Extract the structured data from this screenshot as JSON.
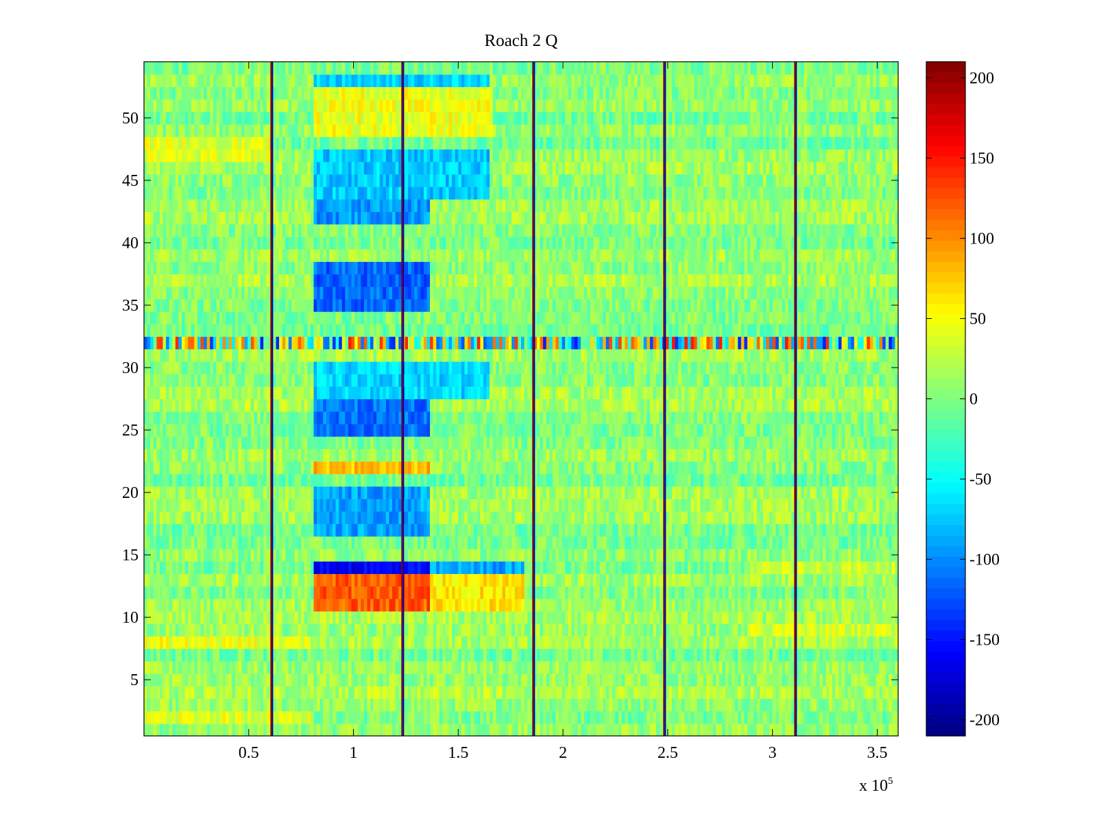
{
  "chart_data": {
    "type": "heatmap",
    "title": "Roach 2 Q",
    "xlabel": "",
    "ylabel": "",
    "x_exponent_label": {
      "base": "x 10",
      "exponent": "5"
    },
    "xlim": [
      0,
      360000
    ],
    "ylim": [
      0.5,
      54.5
    ],
    "rows": 54,
    "x_ticks": [
      50000,
      100000,
      150000,
      200000,
      250000,
      300000,
      350000
    ],
    "x_tick_labels": [
      "0.5",
      "1",
      "1.5",
      "2",
      "2.5",
      "3",
      "3.5"
    ],
    "y_ticks": [
      5,
      10,
      15,
      20,
      25,
      30,
      35,
      40,
      45,
      50
    ],
    "y_tick_labels": [
      "5",
      "10",
      "15",
      "20",
      "25",
      "30",
      "35",
      "40",
      "45",
      "50"
    ],
    "colorbar": {
      "colormap": "jet",
      "range": [
        -210,
        210
      ],
      "ticks": [
        200,
        150,
        100,
        50,
        0,
        -50,
        -100,
        -150,
        -200
      ],
      "tick_labels": [
        "200",
        "150",
        "100",
        "50",
        "0",
        "-50",
        "-100",
        "-150",
        "-200"
      ]
    },
    "grid": false,
    "vertical_stripes_x": [
      61000,
      123500,
      186000,
      248500,
      311000
    ],
    "block_regions": [
      {
        "x_range": [
          81000,
          165000
        ],
        "rows": [
          53
        ],
        "value": -70
      },
      {
        "x_range": [
          81000,
          166000
        ],
        "rows": [
          49,
          50,
          51,
          52
        ],
        "value": 45
      },
      {
        "x_range": [
          81000,
          165000
        ],
        "rows": [
          44,
          45,
          46,
          47
        ],
        "value": -75
      },
      {
        "x_range": [
          81000,
          136000
        ],
        "rows": [
          42,
          43
        ],
        "value": -95
      },
      {
        "x_range": [
          81000,
          136000
        ],
        "rows": [
          35,
          36,
          37,
          38
        ],
        "value": -115
      },
      {
        "x_range": [
          81000,
          165000
        ],
        "rows": [
          28,
          29,
          30
        ],
        "value": -70
      },
      {
        "x_range": [
          81000,
          136000
        ],
        "rows": [
          25,
          26,
          27
        ],
        "value": -110
      },
      {
        "x_range": [
          81000,
          136000
        ],
        "rows": [
          22
        ],
        "value": 80
      },
      {
        "x_range": [
          81000,
          136000
        ],
        "rows": [
          17,
          18,
          19,
          20
        ],
        "value": -90
      },
      {
        "x_range": [
          81000,
          136000
        ],
        "rows": [
          14
        ],
        "value": -160
      },
      {
        "x_range": [
          136000,
          181000
        ],
        "rows": [
          14
        ],
        "value": -90
      },
      {
        "x_range": [
          81000,
          136000
        ],
        "rows": [
          11,
          12,
          13
        ],
        "value": 120
      },
      {
        "x_range": [
          136000,
          181000
        ],
        "rows": [
          11,
          12,
          13
        ],
        "value": 60
      },
      {
        "x_range": [
          0,
          80000
        ],
        "rows": [
          8
        ],
        "value": 45
      },
      {
        "x_range": [
          0,
          80000
        ],
        "rows": [
          2
        ],
        "value": 40
      },
      {
        "x_range": [
          0,
          60000
        ],
        "rows": [
          47,
          48
        ],
        "value": 40
      },
      {
        "x_range": [
          290000,
          360000
        ],
        "rows": [
          9
        ],
        "value": 35
      },
      {
        "x_range": [
          290000,
          360000
        ],
        "rows": [
          14
        ],
        "value": 30
      }
    ],
    "noisy_row": {
      "row": 32,
      "amplitude": 150
    }
  }
}
